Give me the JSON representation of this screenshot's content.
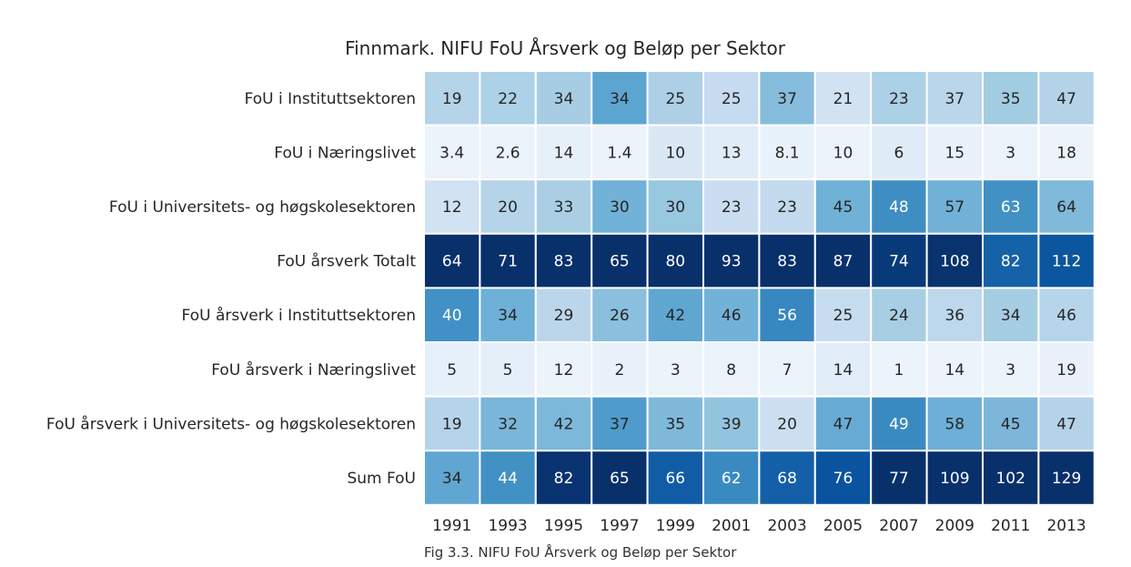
{
  "chart_data": {
    "type": "heatmap",
    "title": "Finnmark. NIFU FoU Årsverk og Beløp per Sektor",
    "caption": "Fig 3.3. NIFU FoU Årsverk og Beløp per Sektor",
    "x": [
      "1991",
      "1993",
      "1995",
      "1997",
      "1999",
      "2001",
      "2003",
      "2005",
      "2007",
      "2009",
      "2011",
      "2013"
    ],
    "y": [
      "FoU i Instituttsektoren",
      "FoU i Næringslivet",
      "FoU i Universitets- og høgskolesektoren",
      "FoU årsverk Totalt",
      "FoU årsverk i Instituttsektoren",
      "FoU årsverk i Næringslivet",
      "FoU årsverk i Universitets- og høgskolesektoren",
      "Sum FoU"
    ],
    "values": [
      [
        19,
        22,
        34,
        34,
        25,
        25,
        37,
        21,
        23,
        37,
        35,
        47
      ],
      [
        3.4,
        2.6,
        14,
        1.4,
        10,
        13,
        8.1,
        10,
        6,
        15,
        3,
        18
      ],
      [
        12,
        20,
        33,
        30,
        30,
        23,
        23,
        45,
        48,
        57,
        63,
        64
      ],
      [
        64,
        71,
        83,
        65,
        80,
        93,
        83,
        87,
        74,
        108,
        82,
        112
      ],
      [
        40,
        34,
        29,
        26,
        42,
        46,
        56,
        25,
        24,
        36,
        34,
        46
      ],
      [
        5,
        5,
        12,
        2,
        3,
        8,
        7,
        14,
        1,
        14,
        3,
        19
      ],
      [
        19,
        32,
        42,
        37,
        35,
        39,
        20,
        47,
        49,
        58,
        45,
        47
      ],
      [
        34,
        44,
        82,
        65,
        66,
        62,
        68,
        76,
        77,
        109,
        102,
        129
      ]
    ],
    "colormap": "Blues",
    "colormap_scope": "column"
  }
}
